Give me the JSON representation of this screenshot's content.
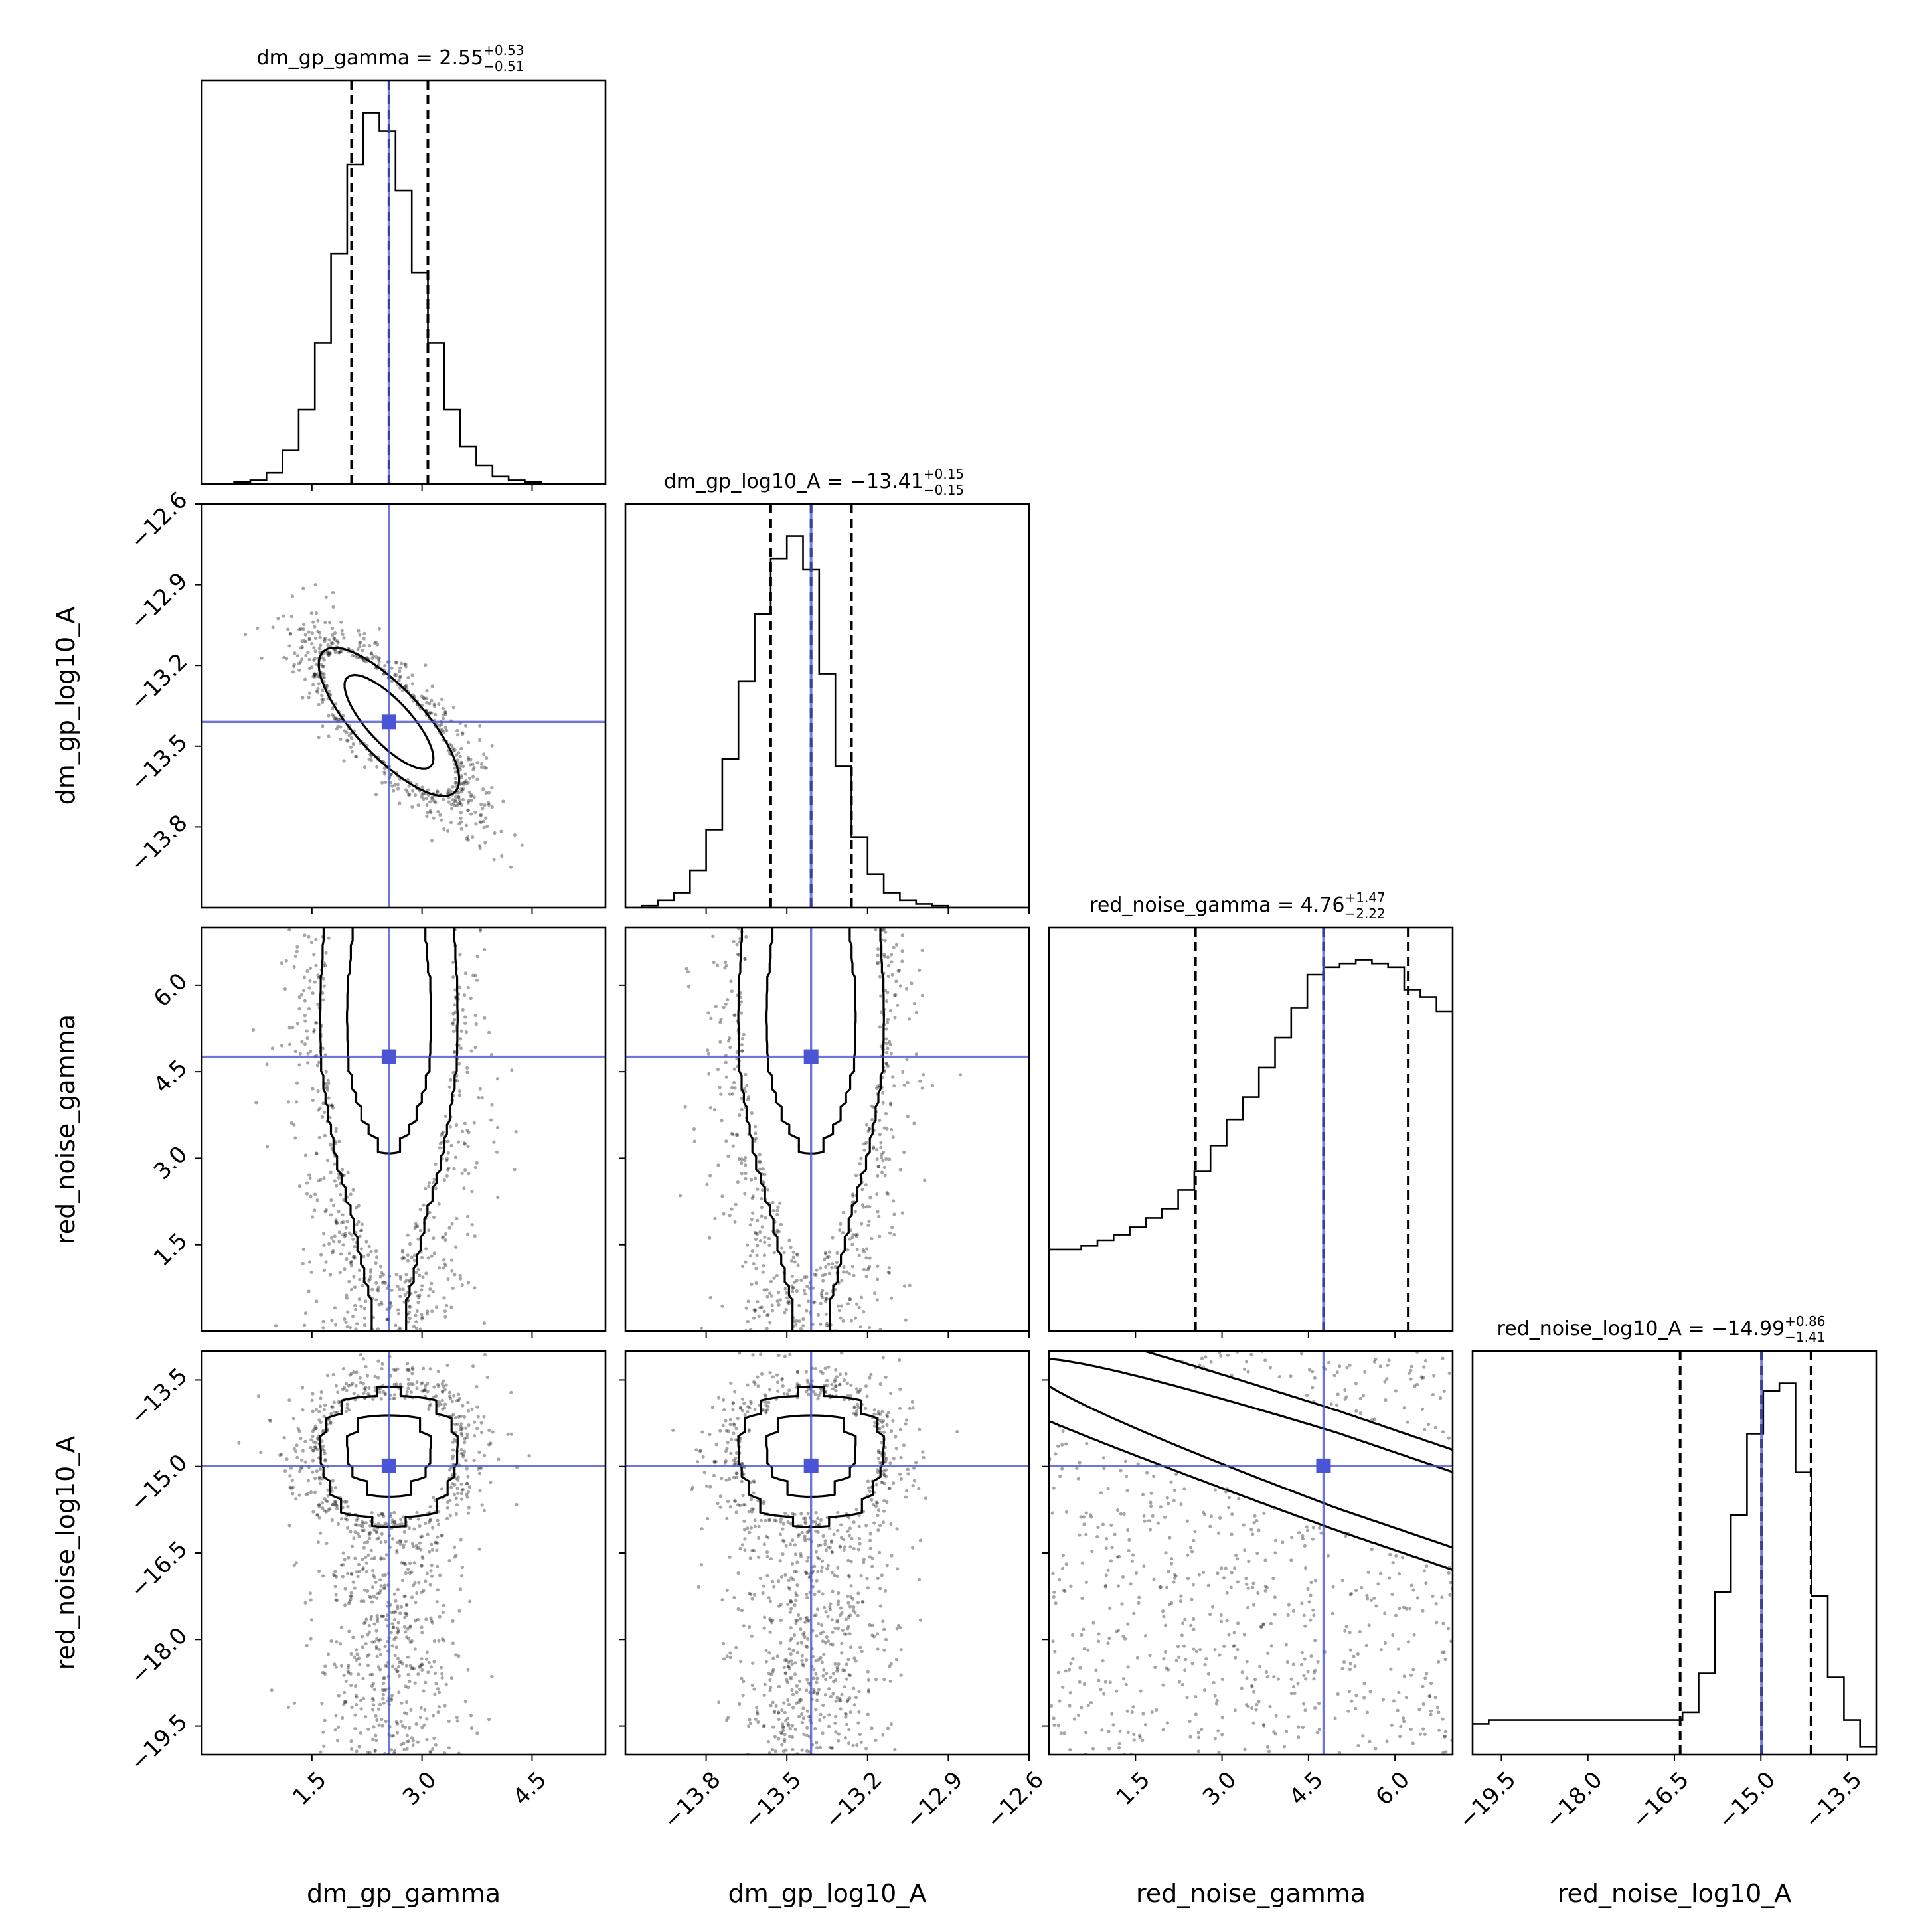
{
  "figure": {
    "type": "corner-plot",
    "truths_color": "#4a55d6",
    "quantile_color": "#000000",
    "step_color": "#000000"
  },
  "parameters": [
    {
      "name": "dm_gp_gamma",
      "label": "dm_gp_gamma",
      "title_main": "dm_gp_gamma = 2.55",
      "title_plus": "+0.53",
      "title_minus": "−0.51",
      "truth": 2.55,
      "q16": 2.04,
      "q84": 3.08,
      "range": [
        0.0,
        5.5
      ],
      "ticks": [
        1.5,
        3.0,
        4.5
      ],
      "tick_labels": [
        "1.5",
        "3.0",
        "4.5"
      ]
    },
    {
      "name": "dm_gp_log10_A",
      "label": "dm_gp_log10_A",
      "title_main": "dm_gp_log10_A = −13.41",
      "title_plus": "+0.15",
      "title_minus": "−0.15",
      "truth": -13.41,
      "q16": -13.56,
      "q84": -13.26,
      "range": [
        -14.1,
        -12.6
      ],
      "ticks": [
        -13.8,
        -13.5,
        -13.2,
        -12.9,
        -12.6
      ],
      "tick_labels": [
        "−13.8",
        "−13.5",
        "−13.2",
        "−12.9",
        "−12.6"
      ]
    },
    {
      "name": "red_noise_gamma",
      "label": "red_noise_gamma",
      "title_main": "red_noise_gamma = 4.76",
      "title_plus": "+1.47",
      "title_minus": "−2.22",
      "truth": 4.76,
      "q16": 2.54,
      "q84": 6.23,
      "range": [
        0.0,
        7.0
      ],
      "ticks": [
        1.5,
        3.0,
        4.5,
        6.0
      ],
      "tick_labels": [
        "1.5",
        "3.0",
        "4.5",
        "6.0"
      ]
    },
    {
      "name": "red_noise_log10_A",
      "label": "red_noise_log10_A",
      "title_main": "red_noise_log10_A = −14.99",
      "title_plus": "+0.86",
      "title_minus": "−1.41",
      "truth": -14.99,
      "q16": -16.4,
      "q84": -14.13,
      "range": [
        -20.0,
        -13.0
      ],
      "ticks": [
        -19.5,
        -18.0,
        -16.5,
        -15.0,
        -13.5
      ],
      "tick_labels": [
        "−19.5",
        "−18.0",
        "−16.5",
        "−15.0",
        "−13.5"
      ]
    }
  ],
  "chart_data": {
    "type": "corner",
    "histograms": [
      {
        "parameter": "dm_gp_gamma",
        "bins": [
          0.0,
          0.22,
          0.44,
          0.66,
          0.88,
          1.1,
          1.32,
          1.54,
          1.76,
          1.98,
          2.2,
          2.42,
          2.64,
          2.86,
          3.08,
          3.3,
          3.52,
          3.74,
          3.96,
          4.18,
          4.4,
          4.62,
          4.84,
          5.06,
          5.28,
          5.5
        ],
        "counts": [
          0.0,
          0.0,
          0.005,
          0.01,
          0.03,
          0.09,
          0.2,
          0.38,
          0.62,
          0.86,
          1.0,
          0.95,
          0.79,
          0.57,
          0.38,
          0.2,
          0.1,
          0.05,
          0.02,
          0.01,
          0.005,
          0.0,
          0.0,
          0.0,
          0.0
        ]
      },
      {
        "parameter": "dm_gp_log10_A",
        "bins": [
          -14.1,
          -14.04,
          -13.98,
          -13.92,
          -13.86,
          -13.8,
          -13.74,
          -13.68,
          -13.62,
          -13.56,
          -13.5,
          -13.44,
          -13.38,
          -13.32,
          -13.26,
          -13.2,
          -13.14,
          -13.08,
          -13.02,
          -12.96,
          -12.9,
          -12.84,
          -12.78,
          -12.72,
          -12.66,
          -12.6
        ],
        "counts": [
          0.0,
          0.005,
          0.02,
          0.04,
          0.1,
          0.21,
          0.4,
          0.61,
          0.79,
          0.94,
          1.0,
          0.91,
          0.63,
          0.38,
          0.19,
          0.09,
          0.04,
          0.02,
          0.01,
          0.005,
          0.0,
          0.0,
          0.0,
          0.0,
          0.0
        ]
      },
      {
        "parameter": "red_noise_gamma",
        "bins": [
          0.0,
          0.28,
          0.56,
          0.84,
          1.12,
          1.4,
          1.68,
          1.96,
          2.24,
          2.52,
          2.8,
          3.08,
          3.36,
          3.64,
          3.92,
          4.2,
          4.48,
          4.76,
          5.04,
          5.32,
          5.6,
          5.88,
          6.16,
          6.44,
          6.72,
          7.0
        ],
        "counts": [
          0.22,
          0.22,
          0.23,
          0.245,
          0.26,
          0.28,
          0.305,
          0.33,
          0.38,
          0.43,
          0.5,
          0.57,
          0.63,
          0.71,
          0.79,
          0.87,
          0.96,
          0.98,
          0.99,
          1.0,
          0.99,
          0.98,
          0.92,
          0.9,
          0.86
        ]
      },
      {
        "parameter": "red_noise_log10_A",
        "bins": [
          -20.0,
          -19.72,
          -19.44,
          -19.16,
          -18.88,
          -18.6,
          -18.32,
          -18.04,
          -17.76,
          -17.48,
          -17.2,
          -16.92,
          -16.64,
          -16.36,
          -16.08,
          -15.8,
          -15.52,
          -15.24,
          -14.96,
          -14.68,
          -14.4,
          -14.12,
          -13.84,
          -13.56,
          -13.28,
          -13.0
        ],
        "counts": [
          0.08,
          0.09,
          0.09,
          0.09,
          0.09,
          0.09,
          0.09,
          0.09,
          0.09,
          0.09,
          0.09,
          0.09,
          0.09,
          0.11,
          0.21,
          0.42,
          0.62,
          0.83,
          0.94,
          0.96,
          0.73,
          0.41,
          0.2,
          0.09,
          0.02
        ]
      }
    ],
    "pairs": [
      {
        "x": "dm_gp_gamma",
        "y": "dm_gp_log10_A",
        "density": "gaussian",
        "mean": [
          2.55,
          -13.41
        ],
        "sigma": [
          0.52,
          0.15
        ],
        "rho": -0.78
      },
      {
        "x": "dm_gp_gamma",
        "y": "red_noise_gamma",
        "density": "gaussian-x-histogram-y",
        "mean": [
          2.55,
          4.76
        ],
        "sigma": [
          0.52,
          1.8
        ]
      },
      {
        "x": "dm_gp_log10_A",
        "y": "red_noise_gamma",
        "density": "gaussian-x-histogram-y",
        "mean": [
          -13.41,
          4.76
        ],
        "sigma": [
          0.15,
          1.8
        ]
      },
      {
        "x": "dm_gp_gamma",
        "y": "red_noise_log10_A",
        "density": "gaussian-x-histogram-y",
        "mean": [
          2.55,
          -14.99
        ],
        "sigma": [
          0.52,
          1.1
        ]
      },
      {
        "x": "dm_gp_log10_A",
        "y": "red_noise_log10_A",
        "density": "gaussian-x-histogram-y",
        "mean": [
          -13.41,
          -14.99
        ],
        "sigma": [
          0.15,
          1.1
        ]
      },
      {
        "x": "red_noise_gamma",
        "y": "red_noise_log10_A",
        "density": "ridge",
        "ridge_slope": -0.34,
        "ridge_width": 0.45
      }
    ]
  }
}
